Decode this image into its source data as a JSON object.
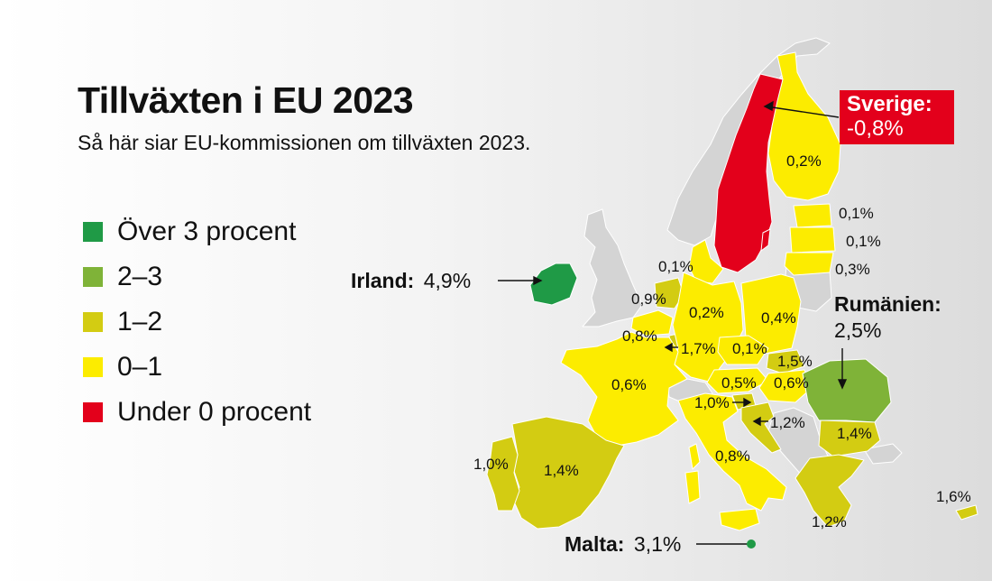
{
  "title": "Tillväxten i EU 2023",
  "subtitle": "Så här siar EU-kommissionen om tillväxten 2023.",
  "colors": {
    "over3": "#1f9a46",
    "2to3": "#7fb338",
    "1to2": "#d3cc12",
    "0to1": "#fcec00",
    "under0": "#e3001b",
    "nonEU": "#d4d4d4"
  },
  "legend": [
    {
      "label": "Över 3 procent",
      "color": "#1f9a46"
    },
    {
      "label": "2–3",
      "color": "#7fb338"
    },
    {
      "label": "1–2",
      "color": "#d3cc12"
    },
    {
      "label": "0–1",
      "color": "#fcec00"
    },
    {
      "label": "Under 0 procent",
      "color": "#e3001b"
    }
  ],
  "callouts": {
    "sverige": {
      "name": "Sverige:",
      "value": "-0,8%"
    },
    "irland": {
      "name": "Irland:",
      "value": "4,9%"
    },
    "rumanien": {
      "name": "Rumänien:",
      "value": "2,5%"
    },
    "malta": {
      "name": "Malta:",
      "value": "3,1%"
    }
  },
  "labels": {
    "finland": "0,2%",
    "estonia": "0,1%",
    "latvia": "0,1%",
    "lithuania": "0,3%",
    "denmark": "0,1%",
    "netherlands": "0,9%",
    "belgium": "0,8%",
    "luxembourg": "1,7%",
    "germany": "0,2%",
    "poland": "0,4%",
    "czechia": "0,1%",
    "slovakia": "1,5%",
    "hungary": "0,6%",
    "austria": "0,5%",
    "slovenia": "1,0%",
    "croatia": "1,2%",
    "france": "0,6%",
    "italy": "0,8%",
    "bulgaria": "1,4%",
    "greece": "1,2%",
    "cyprus": "1,6%",
    "spain": "1,4%",
    "portugal": "1,0%"
  }
}
